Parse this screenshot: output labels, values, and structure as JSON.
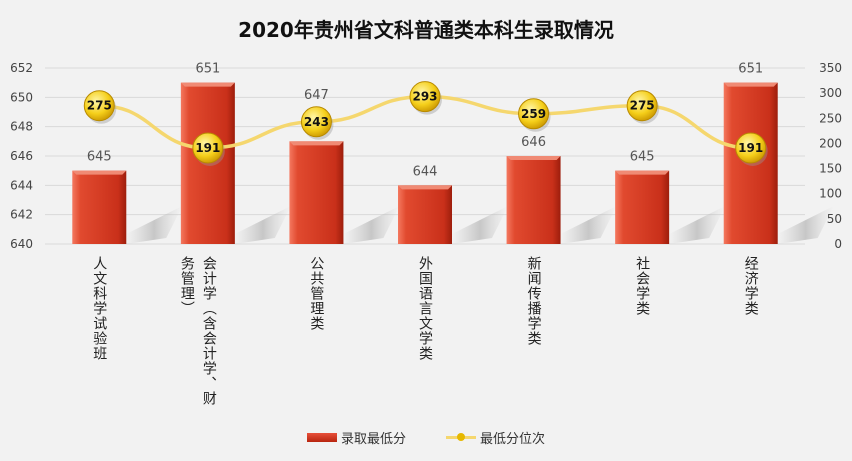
{
  "chart_data": {
    "type": "bar",
    "title": "2020年贵州省文科普通类本科生录取情况",
    "categories": [
      "人文科学试验班",
      "会计学（含会计学、财务管理）",
      "公共管理类",
      "外国语言文学类",
      "新闻传播学类",
      "社会学类",
      "经济学类"
    ],
    "series": [
      {
        "name": "录取最低分",
        "type": "bar",
        "axis": "left",
        "values": [
          645,
          651,
          647,
          644,
          646,
          645,
          651
        ],
        "color": "#d9381e"
      },
      {
        "name": "最低分位次",
        "type": "line",
        "axis": "right",
        "values": [
          275,
          191,
          243,
          293,
          259,
          275,
          191
        ],
        "color": "#f5d76e",
        "marker_color": "#f2c200"
      }
    ],
    "left_axis": {
      "ylim": [
        640,
        652
      ],
      "ticks": [
        "640",
        "642",
        "644",
        "646",
        "648",
        "650",
        "652"
      ]
    },
    "right_axis": {
      "ylim": [
        0,
        350
      ],
      "ticks": [
        "0",
        "50",
        "100",
        "150",
        "200",
        "250",
        "300",
        "350"
      ]
    },
    "grid": true,
    "legend": "bottom"
  }
}
